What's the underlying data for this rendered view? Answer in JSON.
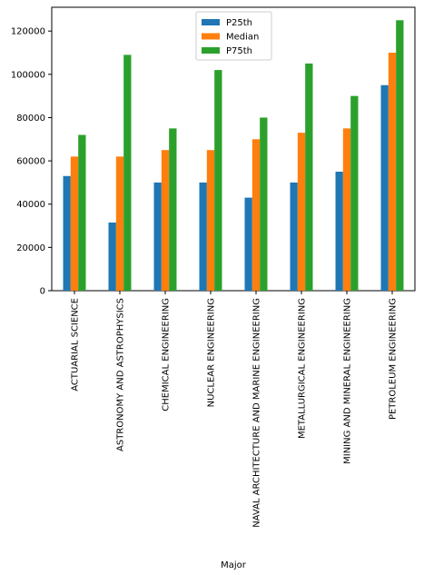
{
  "chart_data": {
    "type": "bar",
    "title": "",
    "xlabel": "Major",
    "ylabel": "",
    "categories": [
      "ACTUARIAL SCIENCE",
      "ASTRONOMY AND ASTROPHYSICS",
      "CHEMICAL ENGINEERING",
      "NUCLEAR ENGINEERING",
      "NAVAL ARCHITECTURE AND MARINE ENGINEERING",
      "METALLURGICAL ENGINEERING",
      "MINING AND MINERAL ENGINEERING",
      "PETROLEUM ENGINEERING"
    ],
    "series": [
      {
        "name": "P25th",
        "color": "#1f77b4",
        "values": [
          53000,
          31500,
          50000,
          50000,
          43000,
          50000,
          55000,
          95000
        ]
      },
      {
        "name": "Median",
        "color": "#ff7f0e",
        "values": [
          62000,
          62000,
          65000,
          65000,
          70000,
          73000,
          75000,
          110000
        ]
      },
      {
        "name": "P75th",
        "color": "#2ca02c",
        "values": [
          72000,
          109000,
          75000,
          102000,
          80000,
          105000,
          90000,
          125000
        ]
      }
    ],
    "ylim": [
      0,
      131000
    ],
    "yticks": [
      0,
      20000,
      40000,
      60000,
      80000,
      100000,
      120000
    ],
    "grid": false,
    "legend": "top-center"
  }
}
